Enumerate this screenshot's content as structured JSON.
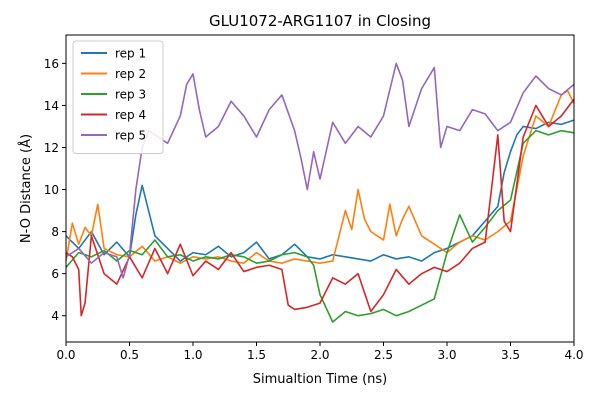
{
  "colors": {
    "rep1": "#1f77b4",
    "rep2": "#ff7f0e",
    "rep3": "#2ca02c",
    "rep4": "#d62728",
    "rep5": "#9467bd"
  },
  "chart_data": {
    "type": "line",
    "title": "GLU1072-ARG1107 in Closing",
    "xlabel": "Simualtion Time (ns)",
    "ylabel": "N-O Distance (Å)",
    "xlim": [
      0,
      4.0
    ],
    "ylim": [
      2.75,
      17.35
    ],
    "xticks": [
      0,
      0.5,
      1.0,
      1.5,
      2.0,
      2.5,
      3.0,
      3.5,
      4.0
    ],
    "xtick_labels": [
      "0.0",
      "0.5",
      "1.0",
      "1.5",
      "2.0",
      "2.5",
      "3.0",
      "3.5",
      "4.0"
    ],
    "yticks": [
      4,
      6,
      8,
      10,
      12,
      14,
      16
    ],
    "ytick_labels": [
      "4",
      "6",
      "8",
      "10",
      "12",
      "14",
      "16"
    ],
    "grid": false,
    "legend_position": "top-left",
    "series": [
      {
        "name": "rep 1",
        "color": "#1f77b4",
        "x": [
          0,
          0.1,
          0.2,
          0.3,
          0.4,
          0.5,
          0.55,
          0.6,
          0.7,
          0.8,
          0.9,
          1.0,
          1.1,
          1.2,
          1.3,
          1.4,
          1.5,
          1.6,
          1.7,
          1.8,
          1.9,
          2.0,
          2.1,
          2.2,
          2.3,
          2.4,
          2.5,
          2.6,
          2.7,
          2.8,
          2.9,
          3.0,
          3.1,
          3.2,
          3.3,
          3.4,
          3.45,
          3.5,
          3.55,
          3.6,
          3.7,
          3.8,
          3.9,
          4.0
        ],
        "y": [
          7.8,
          7.2,
          8.0,
          6.9,
          7.5,
          6.8,
          8.8,
          10.2,
          7.8,
          7.2,
          6.6,
          7.0,
          6.9,
          7.3,
          6.8,
          7.0,
          7.5,
          6.7,
          6.9,
          7.4,
          6.8,
          6.7,
          6.9,
          6.8,
          6.7,
          6.6,
          6.9,
          6.7,
          6.8,
          6.6,
          7.0,
          7.2,
          7.5,
          7.8,
          8.5,
          9.2,
          10.8,
          11.8,
          12.6,
          13.0,
          12.9,
          13.2,
          13.1,
          13.3
        ]
      },
      {
        "name": "rep 2",
        "color": "#ff7f0e",
        "x": [
          0,
          0.05,
          0.1,
          0.15,
          0.2,
          0.25,
          0.3,
          0.4,
          0.5,
          0.6,
          0.7,
          0.8,
          0.9,
          1.0,
          1.1,
          1.2,
          1.3,
          1.4,
          1.5,
          1.6,
          1.7,
          1.8,
          1.9,
          2.0,
          2.1,
          2.15,
          2.2,
          2.25,
          2.3,
          2.35,
          2.4,
          2.5,
          2.55,
          2.6,
          2.65,
          2.7,
          2.8,
          2.9,
          3.0,
          3.1,
          3.2,
          3.3,
          3.4,
          3.5,
          3.6,
          3.7,
          3.8,
          3.9,
          3.95,
          4.0
        ],
        "y": [
          6.6,
          8.4,
          7.4,
          8.2,
          7.8,
          9.3,
          7.2,
          6.9,
          6.8,
          7.3,
          6.6,
          6.8,
          6.5,
          6.8,
          6.7,
          6.8,
          6.6,
          6.5,
          7.0,
          6.6,
          6.5,
          6.7,
          6.6,
          6.5,
          6.6,
          7.8,
          9.0,
          8.1,
          10.0,
          8.6,
          8.0,
          7.6,
          9.3,
          7.8,
          8.6,
          9.2,
          7.8,
          7.4,
          7.0,
          7.5,
          7.8,
          7.6,
          8.0,
          8.5,
          11.6,
          13.5,
          13.0,
          14.5,
          14.7,
          14.1
        ]
      },
      {
        "name": "rep 3",
        "color": "#2ca02c",
        "x": [
          0,
          0.1,
          0.2,
          0.3,
          0.4,
          0.5,
          0.6,
          0.7,
          0.8,
          0.9,
          1.0,
          1.1,
          1.2,
          1.3,
          1.4,
          1.5,
          1.6,
          1.7,
          1.8,
          1.9,
          1.95,
          2.0,
          2.1,
          2.2,
          2.3,
          2.4,
          2.5,
          2.6,
          2.7,
          2.8,
          2.9,
          3.0,
          3.1,
          3.2,
          3.3,
          3.4,
          3.5,
          3.6,
          3.7,
          3.8,
          3.9,
          4.0
        ],
        "y": [
          6.3,
          7.0,
          6.8,
          7.1,
          6.6,
          7.1,
          6.9,
          7.6,
          6.8,
          6.9,
          6.6,
          6.8,
          6.7,
          6.9,
          6.8,
          6.5,
          6.6,
          6.9,
          7.0,
          6.8,
          6.4,
          5.0,
          3.7,
          4.2,
          4.0,
          4.1,
          4.3,
          4.0,
          4.2,
          4.5,
          4.8,
          7.0,
          8.8,
          7.5,
          8.2,
          9.0,
          9.5,
          12.2,
          12.8,
          12.6,
          12.8,
          12.7
        ]
      },
      {
        "name": "rep 4",
        "color": "#d62728",
        "x": [
          0,
          0.05,
          0.1,
          0.12,
          0.15,
          0.2,
          0.3,
          0.4,
          0.5,
          0.6,
          0.7,
          0.8,
          0.9,
          1.0,
          1.1,
          1.2,
          1.3,
          1.4,
          1.5,
          1.6,
          1.7,
          1.75,
          1.8,
          1.9,
          2.0,
          2.1,
          2.2,
          2.3,
          2.4,
          2.5,
          2.6,
          2.7,
          2.8,
          2.9,
          3.0,
          3.1,
          3.2,
          3.3,
          3.35,
          3.4,
          3.45,
          3.5,
          3.6,
          3.7,
          3.8,
          3.9,
          4.0
        ],
        "y": [
          7.0,
          6.8,
          6.2,
          4.0,
          4.6,
          7.8,
          6.0,
          5.5,
          6.8,
          5.8,
          7.2,
          6.0,
          7.4,
          5.9,
          6.6,
          6.2,
          7.0,
          6.1,
          6.3,
          6.4,
          6.2,
          4.5,
          4.3,
          4.4,
          4.6,
          5.8,
          5.5,
          6.0,
          4.2,
          5.0,
          6.2,
          5.5,
          6.0,
          6.3,
          6.1,
          6.5,
          7.2,
          7.5,
          10.0,
          12.6,
          8.5,
          8.0,
          12.5,
          14.0,
          13.0,
          13.5,
          14.3
        ]
      },
      {
        "name": "rep 5",
        "color": "#9467bd",
        "x": [
          0,
          0.1,
          0.2,
          0.3,
          0.4,
          0.45,
          0.5,
          0.55,
          0.6,
          0.65,
          0.7,
          0.8,
          0.9,
          0.95,
          1.0,
          1.05,
          1.1,
          1.2,
          1.3,
          1.4,
          1.5,
          1.6,
          1.7,
          1.8,
          1.85,
          1.9,
          1.95,
          2.0,
          2.1,
          2.2,
          2.3,
          2.4,
          2.5,
          2.6,
          2.65,
          2.7,
          2.8,
          2.9,
          2.95,
          3.0,
          3.1,
          3.2,
          3.3,
          3.4,
          3.5,
          3.6,
          3.7,
          3.8,
          3.9,
          4.0
        ],
        "y": [
          6.8,
          7.2,
          6.5,
          7.0,
          6.8,
          5.8,
          6.9,
          10.0,
          12.0,
          12.8,
          12.6,
          12.2,
          13.5,
          15.0,
          15.5,
          13.8,
          12.5,
          13.0,
          14.2,
          13.5,
          12.5,
          13.8,
          14.5,
          12.8,
          11.5,
          10.0,
          11.8,
          10.5,
          13.2,
          12.2,
          13.0,
          12.5,
          13.5,
          16.0,
          15.2,
          13.0,
          14.8,
          15.8,
          12.0,
          13.0,
          12.8,
          13.8,
          13.6,
          12.8,
          13.2,
          14.6,
          15.4,
          14.8,
          14.5,
          15.0
        ]
      }
    ]
  }
}
